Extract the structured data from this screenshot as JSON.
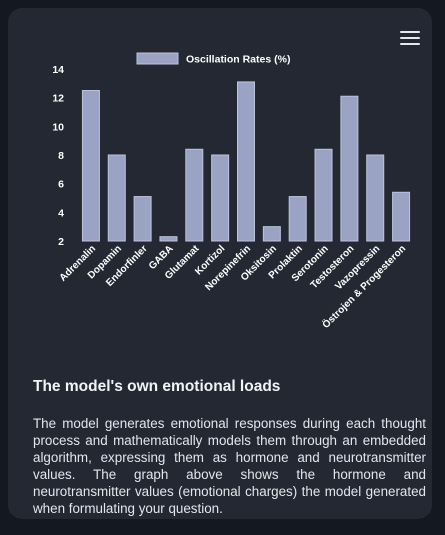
{
  "menu": {
    "icon": "hamburger-menu-icon"
  },
  "chart_data": {
    "type": "bar",
    "legend": [
      "Oscillation Rates (%)"
    ],
    "legend_position": "top-center",
    "categories": [
      "Adrenalin",
      "Dopamin",
      "Endorfinler",
      "GABA",
      "Glutamat",
      "Kortizol",
      "Norepinefrin",
      "Oksitosin",
      "Prolaktin",
      "Serotonin",
      "Testosteron",
      "Vazopressin",
      "Östrojen & Progesteron"
    ],
    "series": [
      {
        "name": "Oscillation Rates (%)",
        "values": [
          12.5,
          8.0,
          5.1,
          2.3,
          8.4,
          8.0,
          13.1,
          3.0,
          5.1,
          8.4,
          12.1,
          8.0,
          5.4
        ]
      }
    ],
    "y_ticks": [
      "2",
      "4",
      "6",
      "8",
      "10",
      "12",
      "14"
    ],
    "ylim": [
      2,
      14
    ],
    "grid": false,
    "colors": {
      "bar_fill": "#9aa3c3",
      "bar_stroke": "#bcc3dc",
      "text": "#ffffff"
    }
  },
  "section": {
    "title": "The model's own emotional loads",
    "description": "The model generates emotional responses during each thought process and mathematically models them through an embedded algorithm, expressing them as hormone and neurotransmitter values. The graph above shows the hormone and neurotransmitter values (emotional charges) the model generated when formulating your question."
  }
}
